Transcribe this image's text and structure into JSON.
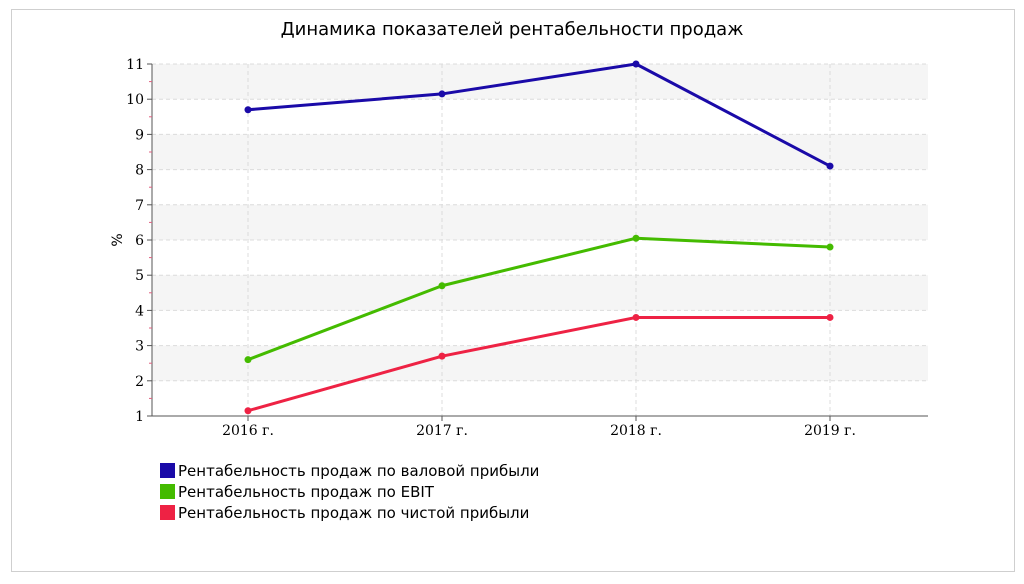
{
  "chart_data": {
    "type": "line",
    "title": "Динамика показателей рентабельности продаж",
    "xlabel": "",
    "ylabel": "%",
    "categories": [
      "2016 г.",
      "2017 г.",
      "2018 г.",
      "2019 г."
    ],
    "ylim": [
      1,
      11
    ],
    "yticks": [
      "1",
      "2",
      "3",
      "4",
      "5",
      "6",
      "7",
      "8",
      "9",
      "10",
      "11"
    ],
    "grid": true,
    "legend_position": "bottom-left",
    "series": [
      {
        "name": "Рентабельность продаж по валовой прибыли",
        "color": "#1a0aa8",
        "values": [
          9.7,
          10.15,
          11.0,
          8.1
        ]
      },
      {
        "name": "Рентабельность продаж по EBIT",
        "color": "#44bb00",
        "values": [
          2.6,
          4.7,
          6.05,
          5.8
        ]
      },
      {
        "name": "Рентабельность продаж по чистой прибыли",
        "color": "#ee2244",
        "values": [
          1.15,
          2.7,
          3.8,
          3.8
        ]
      }
    ]
  }
}
